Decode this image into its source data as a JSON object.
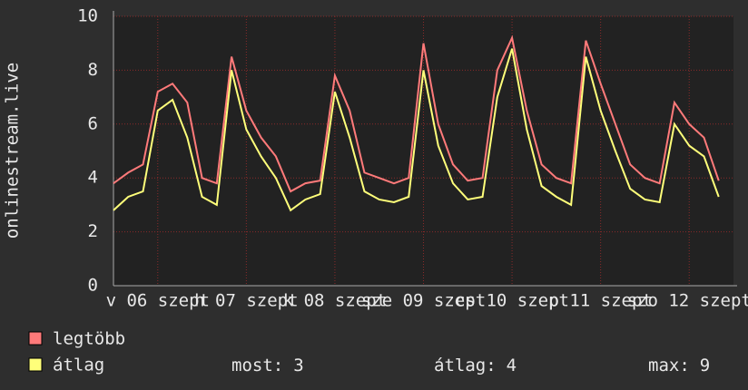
{
  "chart_data": {
    "type": "line",
    "y_label": "onlinestream.live",
    "x": [
      0,
      4,
      8,
      12,
      16,
      20,
      24,
      28,
      32,
      36,
      40,
      44,
      48,
      52,
      56,
      60,
      64,
      68,
      72,
      76,
      80,
      84,
      88,
      92,
      96,
      100,
      104,
      108,
      112,
      116,
      120,
      124,
      128,
      132,
      136,
      140,
      144,
      148,
      152,
      156,
      160,
      164
    ],
    "series": [
      {
        "name": "legtöbb",
        "color": "#ff7a7a",
        "values": [
          3.8,
          4.2,
          4.5,
          7.2,
          7.5,
          6.8,
          4.0,
          3.8,
          8.5,
          6.5,
          5.5,
          4.8,
          3.5,
          3.8,
          3.9,
          7.8,
          6.5,
          4.2,
          4.0,
          3.8,
          4.0,
          9.0,
          6.0,
          4.5,
          3.9,
          4.0,
          8.0,
          9.2,
          6.5,
          4.5,
          4.0,
          3.8,
          9.1,
          7.5,
          6.0,
          4.5,
          4.0,
          3.8,
          6.8,
          6.0,
          5.5,
          3.9
        ]
      },
      {
        "name": "átlag",
        "color": "#ffff7a",
        "values": [
          2.8,
          3.3,
          3.5,
          6.5,
          6.9,
          5.5,
          3.3,
          3.0,
          8.0,
          5.8,
          4.8,
          4.0,
          2.8,
          3.2,
          3.4,
          7.2,
          5.5,
          3.5,
          3.2,
          3.1,
          3.3,
          8.0,
          5.2,
          3.8,
          3.2,
          3.3,
          7.0,
          8.8,
          5.8,
          3.7,
          3.3,
          3.0,
          8.5,
          6.5,
          5.0,
          3.6,
          3.2,
          3.1,
          6.0,
          5.2,
          4.8,
          3.3
        ]
      }
    ],
    "xlim": [
      0,
      168
    ],
    "xticks": [
      {
        "value": 12,
        "label": "v 06 szept"
      },
      {
        "value": 36,
        "label": "h 07 szept"
      },
      {
        "value": 60,
        "label": "k 08 szept"
      },
      {
        "value": 84,
        "label": "sze 09 szept"
      },
      {
        "value": 108,
        "label": "cs 10 szept"
      },
      {
        "value": 132,
        "label": "p 11 szept"
      },
      {
        "value": 156,
        "label": "szo 12 szept"
      }
    ],
    "ylim": [
      0,
      10
    ],
    "yticks": [
      0,
      2,
      4,
      6,
      8,
      10
    ],
    "grid": true,
    "stats": [
      {
        "label": "most:",
        "value": 3
      },
      {
        "label": "átlag:",
        "value": 4
      },
      {
        "label": "max:",
        "value": 9
      }
    ]
  }
}
